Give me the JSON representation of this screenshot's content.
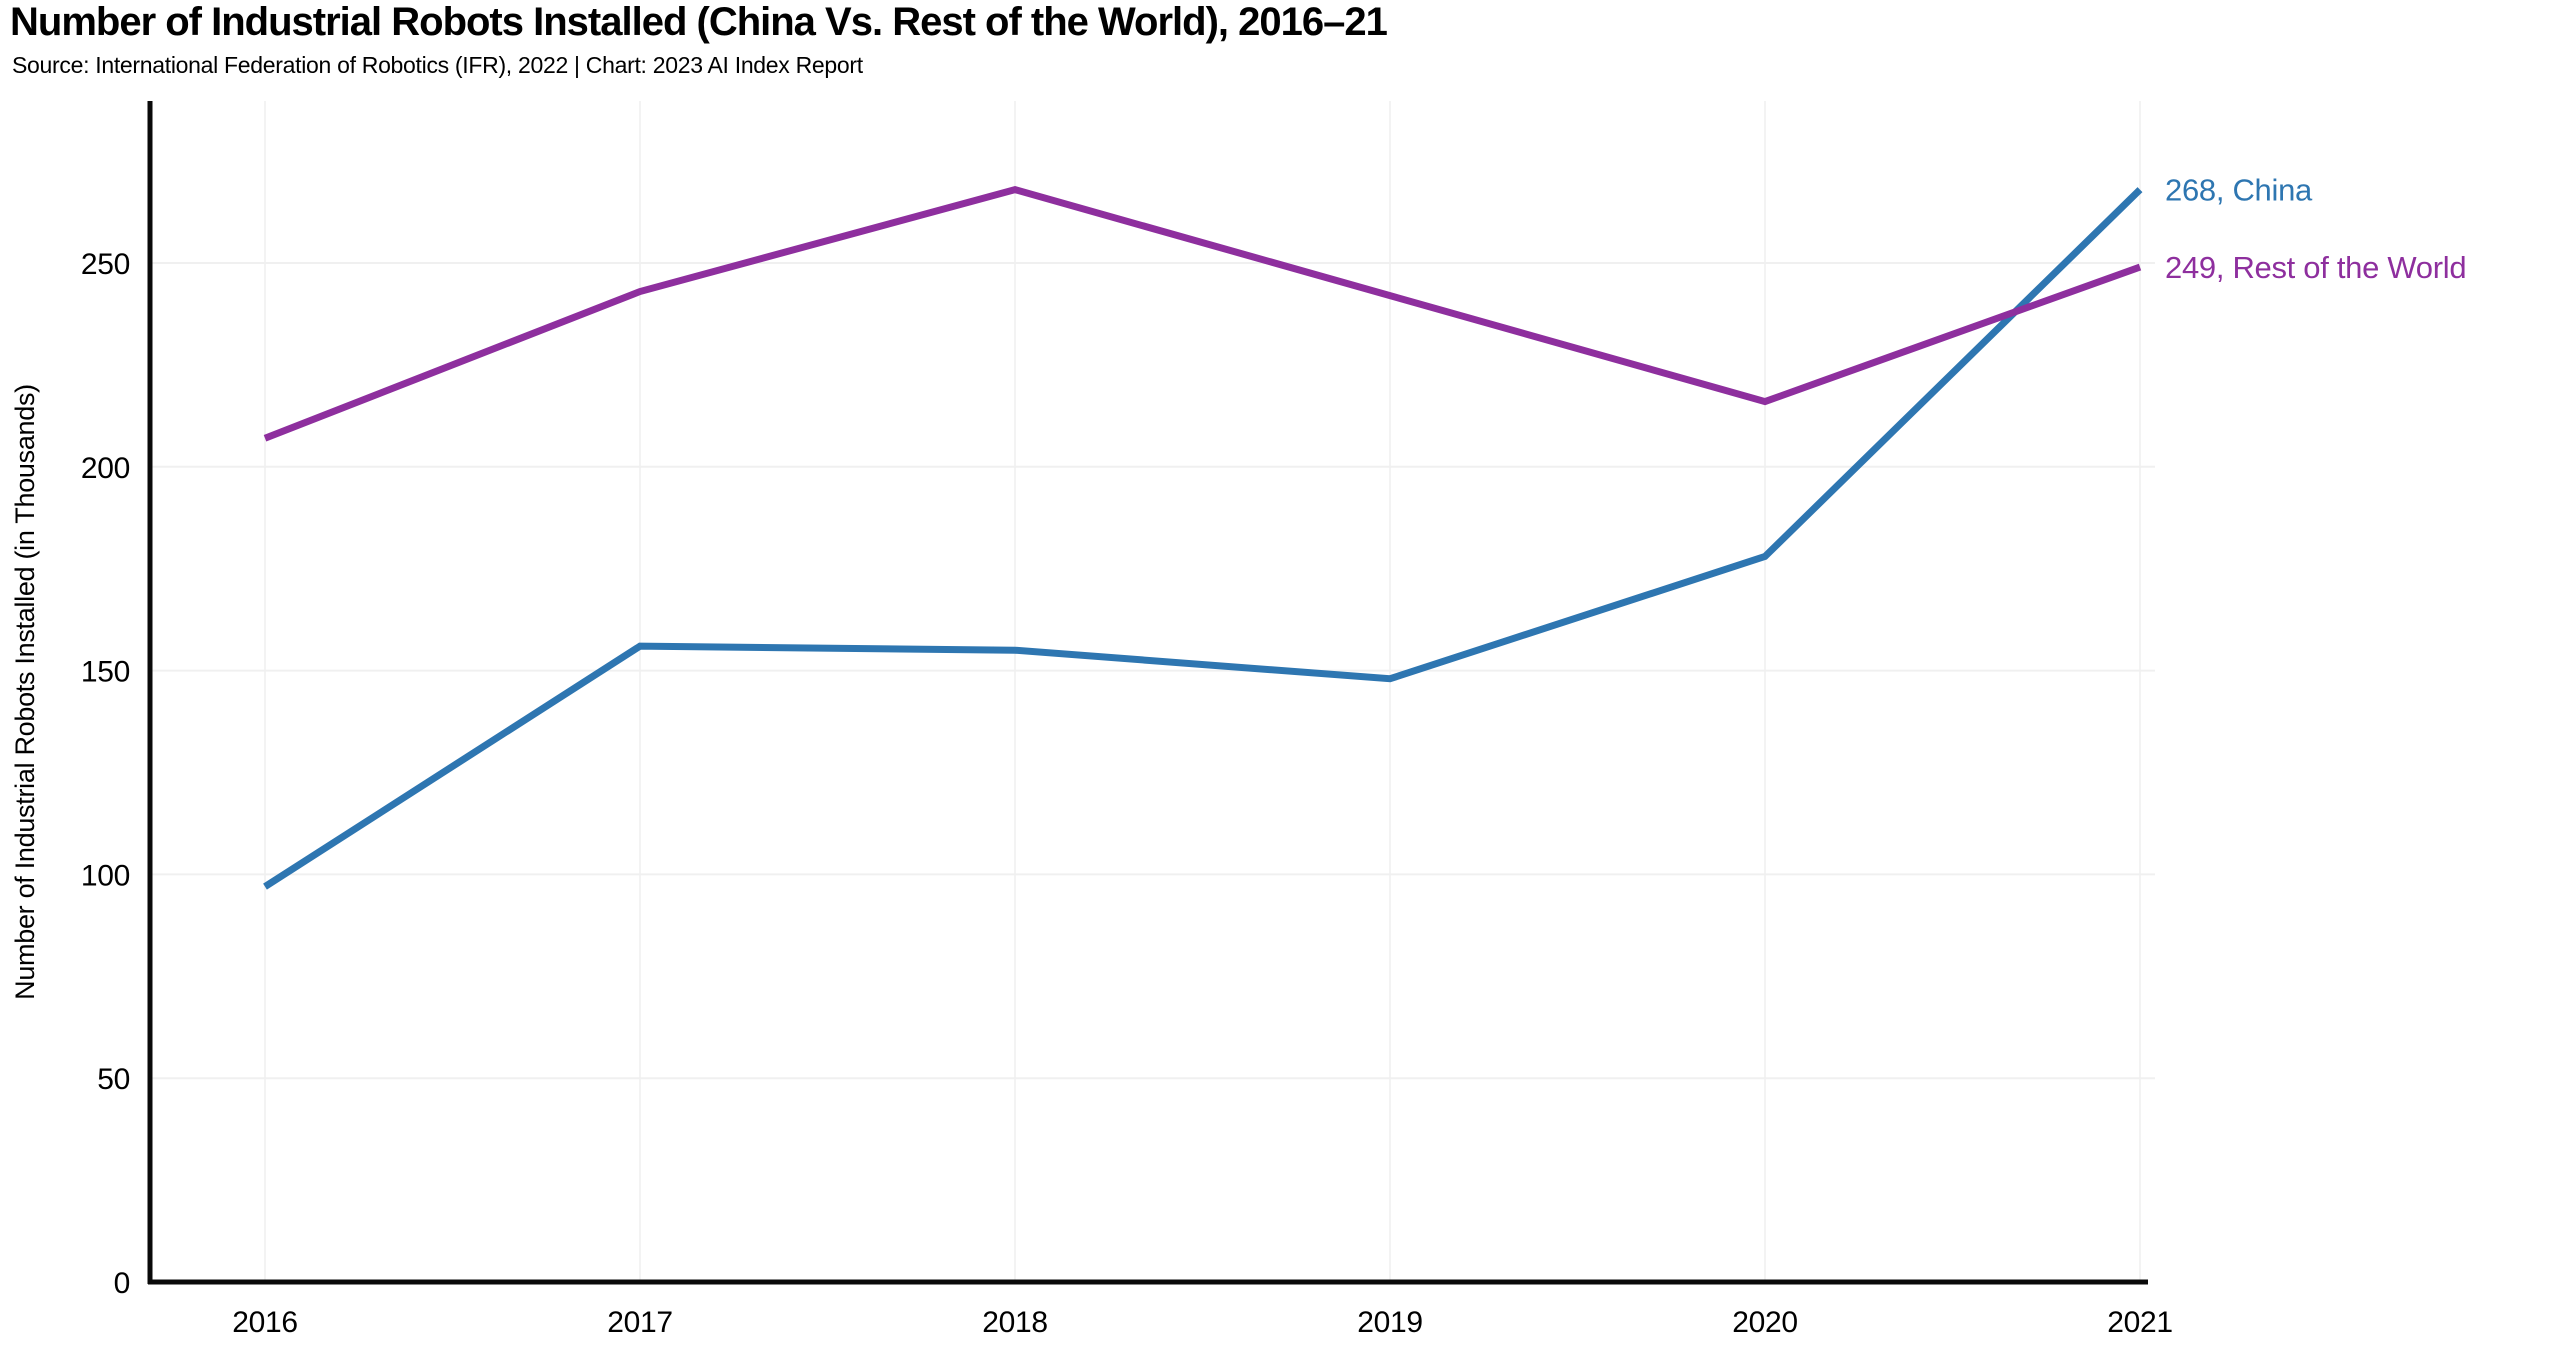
{
  "header": {
    "title": "Number of Industrial Robots Installed (China Vs. Rest of the World), 2016–21",
    "subtitle": "Source: International Federation of Robotics (IFR), 2022 | Chart: 2023 AI Index Report"
  },
  "chart_data": {
    "type": "line",
    "title": "Number of Industrial Robots Installed (China Vs. Rest of the World), 2016–21",
    "subtitle": "Source: International Federation of Robotics (IFR), 2022 | Chart: 2023 AI Index Report",
    "x": [
      "2016",
      "2017",
      "2018",
      "2019",
      "2020",
      "2021"
    ],
    "series": [
      {
        "name": "China",
        "values": [
          97,
          156,
          155,
          148,
          178,
          268
        ],
        "color": "#2e76b1",
        "end_label": "268, China"
      },
      {
        "name": "Rest of the World",
        "values": [
          207,
          243,
          268,
          242,
          216,
          249
        ],
        "color": "#8e2f9e",
        "end_label": "249, Rest of the World"
      }
    ],
    "xlabel": "",
    "ylabel": "Number of Industrial Robots Installed (in Thousands)",
    "y_ticks": [
      0,
      50,
      100,
      150,
      200,
      250
    ],
    "ylim": [
      0,
      280
    ],
    "grid": true,
    "legend_position": "line-end-labels-right",
    "colors": {
      "axis": "#0a0a0a",
      "grid_horizontal": "#f0f0f0",
      "grid_vertical": "#f3f3f3",
      "background": "#ffffff"
    }
  }
}
